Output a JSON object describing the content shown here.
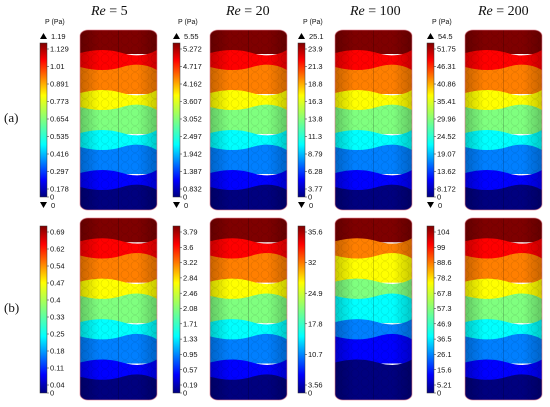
{
  "columns": [
    {
      "title_var": "Re",
      "title_eq": " = 5"
    },
    {
      "title_var": "Re",
      "title_eq": " = 20"
    },
    {
      "title_var": "Re",
      "title_eq": " = 100"
    },
    {
      "title_var": "Re",
      "title_eq": " = 200"
    }
  ],
  "rows": [
    {
      "label": "(a)",
      "legends": [
        {
          "unit": "P (Pa)",
          "max": "1.19",
          "min": "0",
          "ticks": [
            "1.129",
            "1.01",
            "0.891",
            "0.773",
            "0.654",
            "0.535",
            "0.416",
            "0.297",
            "0.178",
            "0"
          ]
        },
        {
          "unit": "P (Pa)",
          "max": "5.55",
          "min": "0",
          "ticks": [
            "5.272",
            "4.717",
            "4.162",
            "3.607",
            "3.052",
            "2.497",
            "1.942",
            "1.387",
            "0.832",
            "0"
          ]
        },
        {
          "unit": "P (Pa)",
          "max": "25.1",
          "min": "0",
          "ticks": [
            "23.9",
            "21.3",
            "18.8",
            "16.3",
            "13.8",
            "11.3",
            "8.79",
            "6.28",
            "3.77",
            "0"
          ]
        },
        {
          "unit": "P (Pa)",
          "max": "54.5",
          "min": "0",
          "ticks": [
            "51.75",
            "46.31",
            "40.86",
            "35.41",
            "29.96",
            "24.52",
            "19.07",
            "13.62",
            "8.172",
            "0"
          ]
        }
      ]
    },
    {
      "label": "(b)",
      "legends": [
        {
          "ticks": [
            "0.69",
            "0.62",
            "0.54",
            "0.47",
            "0.4",
            "0.33",
            "0.25",
            "0.18",
            "0.11",
            "0.04",
            "0"
          ]
        },
        {
          "ticks": [
            "3.79",
            "3.6",
            "3.22",
            "2.84",
            "2.46",
            "2.08",
            "1.71",
            "1.33",
            "0.95",
            "0.57",
            "0.19",
            "0"
          ]
        },
        {
          "ticks": [
            "35.6",
            "32",
            "24.9",
            "17.8",
            "10.7",
            "3.56",
            "0"
          ]
        },
        {
          "ticks": [
            "104",
            "99",
            "88.6",
            "78.2",
            "67.8",
            "57.3",
            "46.9",
            "36.5",
            "26.1",
            "15.6",
            "5.21",
            "0"
          ]
        }
      ]
    }
  ],
  "colors": {
    "jet": [
      "#00007f",
      "#0000ff",
      "#007fff",
      "#00ffff",
      "#7fff7f",
      "#ffff00",
      "#ff7f00",
      "#ff0000",
      "#7f0000"
    ]
  }
}
